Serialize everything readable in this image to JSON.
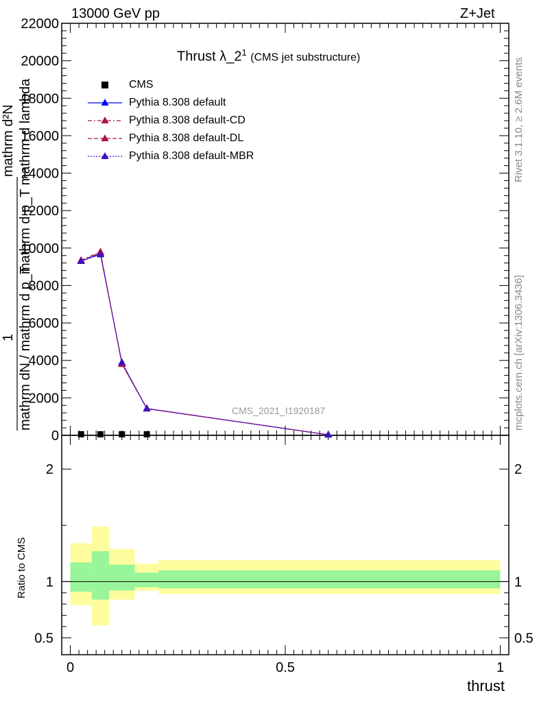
{
  "header": {
    "energy": "13000 GeV pp",
    "process": "Z+Jet"
  },
  "side_text": {
    "rivet": "Rivet 3.1.10, ≥ 2.6M events",
    "mcplots": "mcplots.cern.ch [arXiv:1306.3436]"
  },
  "watermark": "CMS_2021_I1920187",
  "chart_data": [
    {
      "type": "line",
      "title": "Thrust λ_2",
      "title_sup": "1",
      "subtitle": "(CMS jet substructure)",
      "ylabel_top": "mathrm d²N",
      "ylabel_bottom": "mathrm d p_T mathrm d lambda",
      "ylabel_prefactor_top": "1",
      "ylabel_prefactor_bottom": "mathrm dN / mathrm d p_T",
      "ylim": [
        0,
        22000
      ],
      "xlim": [
        -0.02,
        1.02
      ],
      "y_ticks": [
        0,
        2000,
        4000,
        6000,
        8000,
        10000,
        12000,
        14000,
        16000,
        18000,
        20000,
        22000
      ],
      "y_tick_labels": [
        "0",
        "2000",
        "4000",
        "6000",
        "8000",
        "10000",
        "12000",
        "14000",
        "16000",
        "18000",
        "20000",
        "22000"
      ],
      "legend_position": "top-left",
      "data": {
        "name": "CMS",
        "x": [
          0.025,
          0.07,
          0.12,
          0.178
        ],
        "y": [
          0,
          0,
          0,
          0
        ]
      },
      "series": [
        {
          "name": "Pythia 8.308 default",
          "color": "#0000ff",
          "dash": "solid",
          "x": [
            0.025,
            0.07,
            0.12,
            0.178,
            0.6
          ],
          "y": [
            9300,
            9700,
            3850,
            1420,
            30
          ]
        },
        {
          "name": "Pythia 8.308 default-CD",
          "color": "#a8163f",
          "dash": "dashdot",
          "x": [
            0.025,
            0.07,
            0.12,
            0.178,
            0.6
          ],
          "y": [
            9350,
            9800,
            3800,
            1430,
            30
          ]
        },
        {
          "name": "Pythia 8.308 default-DL",
          "color": "#b0104f",
          "dash": "dashed",
          "x": [
            0.025,
            0.07,
            0.12,
            0.178,
            0.6
          ],
          "y": [
            9320,
            9750,
            3820,
            1425,
            30
          ]
        },
        {
          "name": "Pythia 8.308 default-MBR",
          "color": "#3a10c8",
          "dash": "dotted",
          "x": [
            0.025,
            0.07,
            0.12,
            0.178,
            0.6
          ],
          "y": [
            9300,
            9650,
            3900,
            1440,
            30
          ]
        }
      ]
    },
    {
      "type": "area",
      "ylabel": "Ratio to CMS",
      "xlabel": "thrust",
      "xlim": [
        -0.02,
        1.02
      ],
      "ylim": [
        0.35,
        2.3
      ],
      "x_ticks": [
        0,
        0.5,
        1
      ],
      "x_tick_labels": [
        "0",
        "0.5",
        "1"
      ],
      "y_ticks": [
        0.5,
        1,
        2
      ],
      "y_tick_labels": [
        "0.5",
        "1",
        "2"
      ],
      "reference_line": 1,
      "bands": [
        {
          "x_low": 0.0,
          "x_high": 0.05,
          "inner": [
            0.91,
            1.17
          ],
          "outer": [
            0.79,
            1.34
          ]
        },
        {
          "x_low": 0.05,
          "x_high": 0.09,
          "inner": [
            0.84,
            1.27
          ],
          "outer": [
            0.61,
            1.49
          ]
        },
        {
          "x_low": 0.09,
          "x_high": 0.15,
          "inner": [
            0.92,
            1.15
          ],
          "outer": [
            0.84,
            1.29
          ]
        },
        {
          "x_low": 0.15,
          "x_high": 0.205,
          "inner": [
            0.95,
            1.08
          ],
          "outer": [
            0.92,
            1.16
          ]
        },
        {
          "x_low": 0.205,
          "x_high": 1.0,
          "inner": [
            0.94,
            1.1
          ],
          "outer": [
            0.89,
            1.19
          ]
        }
      ],
      "colors": {
        "inner": "#99f599",
        "outer": "#fdfd9e"
      }
    }
  ]
}
